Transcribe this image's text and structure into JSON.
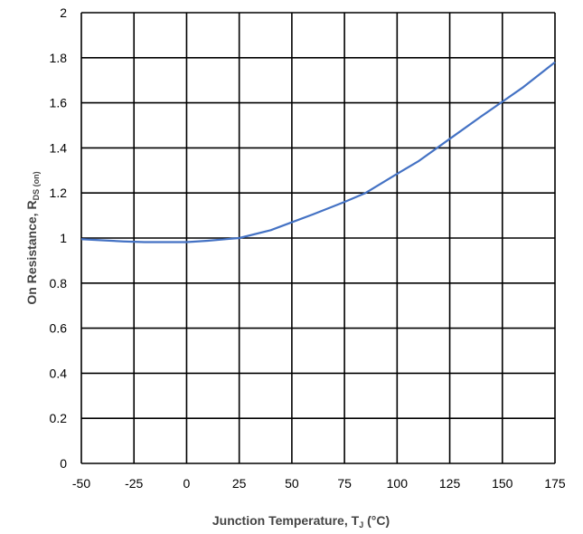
{
  "chart_data": {
    "type": "line",
    "xlabel": {
      "main": "Junction Temperature, T",
      "sub": "J",
      "tail": " (°C)"
    },
    "ylabel": {
      "main": "On Resistance, R",
      "sub": "DS (on)"
    },
    "xlim": [
      -50,
      175
    ],
    "ylim": [
      0,
      2
    ],
    "x_ticks": [
      "-50",
      "-25",
      "0",
      "25",
      "50",
      "75",
      "100",
      "125",
      "150",
      "175"
    ],
    "y_ticks": [
      "0",
      "0.2",
      "0.4",
      "0.6",
      "0.8",
      "1",
      "1.2",
      "1.4",
      "1.6",
      "1.8",
      "2"
    ],
    "grid": true,
    "series": [
      {
        "color": "#4472C4",
        "x": [
          -50,
          -40,
          -30,
          -20,
          -10,
          0,
          10,
          25,
          40,
          50,
          60,
          75,
          85,
          100,
          110,
          125,
          140,
          150,
          160,
          175
        ],
        "y": [
          0.995,
          0.99,
          0.985,
          0.982,
          0.982,
          0.982,
          0.988,
          1.0,
          1.035,
          1.07,
          1.105,
          1.16,
          1.2,
          1.285,
          1.34,
          1.44,
          1.54,
          1.605,
          1.67,
          1.78
        ]
      }
    ]
  }
}
